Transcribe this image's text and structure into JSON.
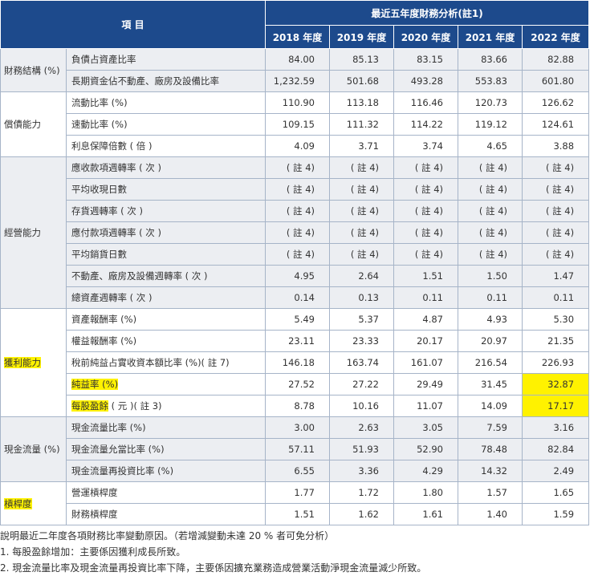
{
  "header": {
    "item": "項 目",
    "period": "最近五年度財務分析(註1)",
    "years": [
      "2018 年度",
      "2019 年度",
      "2020 年度",
      "2021 年度",
      "2022 年度"
    ]
  },
  "table": {
    "groups": [
      {
        "label": "財務結構 (%)",
        "highlight": false,
        "shade": true,
        "rows": [
          {
            "item": "負債占資產比率",
            "values": [
              "84.00",
              "85.13",
              "83.15",
              "83.66",
              "82.88"
            ]
          },
          {
            "item": "長期資金佔不動產、廠房及設備比率",
            "values": [
              "1,232.59",
              "501.68",
              "493.28",
              "553.83",
              "601.80"
            ]
          }
        ]
      },
      {
        "label": "償債能力",
        "highlight": false,
        "shade": false,
        "rows": [
          {
            "item": "流動比率 (%)",
            "values": [
              "110.90",
              "113.18",
              "116.46",
              "120.73",
              "126.62"
            ]
          },
          {
            "item": "速動比率 (%)",
            "values": [
              "109.15",
              "111.32",
              "114.22",
              "119.12",
              "124.61"
            ]
          },
          {
            "item": "利息保障倍數 ( 倍 )",
            "values": [
              "4.09",
              "3.71",
              "3.74",
              "4.65",
              "3.88"
            ]
          }
        ]
      },
      {
        "label": "經營能力",
        "highlight": false,
        "shade": true,
        "rows": [
          {
            "item": "應收款項週轉率 ( 次 )",
            "values": [
              "( 註 4)",
              "( 註 4)",
              "( 註 4)",
              "( 註 4)",
              "( 註 4)"
            ]
          },
          {
            "item": "平均收現日數",
            "values": [
              "( 註 4)",
              "( 註 4)",
              "( 註 4)",
              "( 註 4)",
              "( 註 4)"
            ]
          },
          {
            "item": "存貨週轉率 ( 次 )",
            "values": [
              "( 註 4)",
              "( 註 4)",
              "( 註 4)",
              "( 註 4)",
              "( 註 4)"
            ]
          },
          {
            "item": "應付款項週轉率 ( 次 )",
            "values": [
              "( 註 4)",
              "( 註 4)",
              "( 註 4)",
              "( 註 4)",
              "( 註 4)"
            ]
          },
          {
            "item": "平均銷貨日數",
            "values": [
              "( 註 4)",
              "( 註 4)",
              "( 註 4)",
              "( 註 4)",
              "( 註 4)"
            ]
          },
          {
            "item": "不動產、廠房及設備週轉率 ( 次 )",
            "values": [
              "4.95",
              "2.64",
              "1.51",
              "1.50",
              "1.47"
            ]
          },
          {
            "item": "總資產週轉率 ( 次 )",
            "values": [
              "0.14",
              "0.13",
              "0.11",
              "0.11",
              "0.11"
            ]
          }
        ]
      },
      {
        "label": "獲利能力",
        "highlight": true,
        "shade": false,
        "rows": [
          {
            "item": "資產報酬率 (%)",
            "values": [
              "5.49",
              "5.37",
              "4.87",
              "4.93",
              "5.30"
            ]
          },
          {
            "item": "權益報酬率 (%)",
            "values": [
              "23.11",
              "23.33",
              "20.17",
              "20.97",
              "21.35"
            ]
          },
          {
            "item": "稅前純益占實收資本額比率 (%)( 註 7)",
            "values": [
              "146.18",
              "163.74",
              "161.07",
              "216.54",
              "226.93"
            ]
          },
          {
            "item": "純益率 (%)",
            "item_highlight": true,
            "values": [
              "27.52",
              "27.22",
              "29.49",
              "31.45",
              "32.87"
            ],
            "highlight": [
              false,
              false,
              false,
              false,
              true
            ]
          },
          {
            "item": "每股盈餘",
            "item_suffix": " ( 元 )( 註 3)",
            "item_highlight": true,
            "values": [
              "8.78",
              "10.16",
              "11.07",
              "14.09",
              "17.17"
            ],
            "highlight": [
              false,
              false,
              false,
              false,
              true
            ]
          }
        ]
      },
      {
        "label": "現金流量 (%)",
        "highlight": false,
        "shade": true,
        "rows": [
          {
            "item": "現金流量比率 (%)",
            "values": [
              "3.00",
              "2.63",
              "3.05",
              "7.59",
              "3.16"
            ]
          },
          {
            "item": "現金流量允當比率 (%)",
            "values": [
              "57.11",
              "51.93",
              "52.90",
              "78.48",
              "82.84"
            ]
          },
          {
            "item": "現金流量再投資比率 (%)",
            "values": [
              "6.55",
              "3.36",
              "4.29",
              "14.32",
              "2.49"
            ]
          }
        ]
      },
      {
        "label": "槓桿度",
        "highlight": true,
        "shade": false,
        "rows": [
          {
            "item": "營運槓桿度",
            "values": [
              "1.77",
              "1.72",
              "1.80",
              "1.57",
              "1.65"
            ]
          },
          {
            "item": "財務槓桿度",
            "values": [
              "1.51",
              "1.62",
              "1.61",
              "1.40",
              "1.59"
            ]
          }
        ]
      }
    ]
  },
  "notes": [
    "說明最近二年度各項財務比率變動原因。（若增減變動未達 20 % 者可免分析）",
    "1. 每股盈餘增加：主要係因獲利成長所致。",
    "2. 現金流量比率及現金流量再投資比率下降，主要係因擴充業務造成營業活動淨現金流量減少所致。"
  ]
}
